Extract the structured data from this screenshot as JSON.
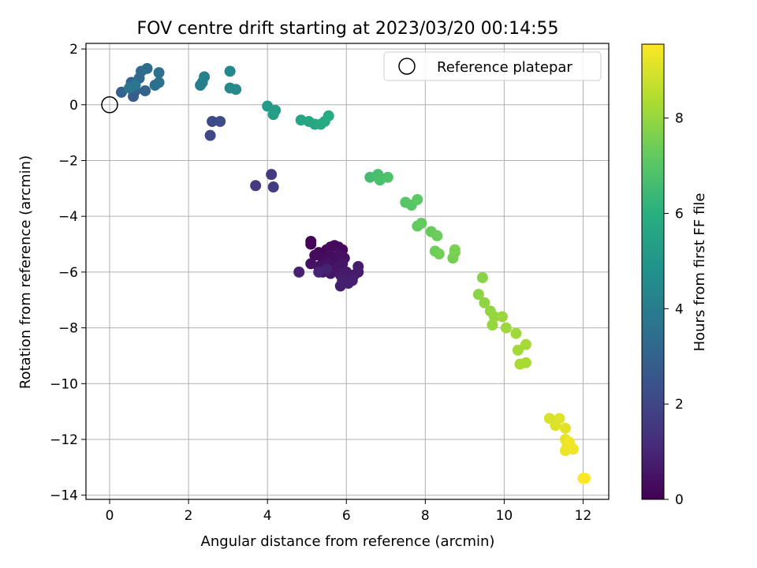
{
  "chart_data": {
    "type": "scatter",
    "title": "FOV centre drift starting at 2023/03/20 00:14:55",
    "xlabel": "Angular distance from reference (arcmin)",
    "ylabel": "Rotation from reference (arcmin)",
    "xlim": [
      -0.6,
      12.65
    ],
    "ylim": [
      -14.15,
      2.2
    ],
    "xticks": [
      0,
      2,
      4,
      6,
      8,
      10,
      12
    ],
    "yticks": [
      2,
      0,
      -2,
      -4,
      -6,
      -8,
      -10,
      -12,
      -14
    ],
    "grid": true,
    "legend": {
      "position": "top-right",
      "entries": [
        "Reference platepar"
      ]
    },
    "reference_point": {
      "x": 0,
      "y": 0
    },
    "colorbar": {
      "label": "Hours from first FF file",
      "range": [
        0,
        9.55
      ],
      "ticks": [
        0,
        2,
        4,
        6,
        8
      ],
      "colormap": "viridis"
    },
    "points": [
      {
        "x": 5.1,
        "y": -4.9,
        "t": 0.1
      },
      {
        "x": 5.1,
        "y": -5.0,
        "t": 0.1
      },
      {
        "x": 5.3,
        "y": -5.3,
        "t": 0.15
      },
      {
        "x": 5.5,
        "y": -5.2,
        "t": 0.15
      },
      {
        "x": 5.6,
        "y": -5.1,
        "t": 0.2
      },
      {
        "x": 5.7,
        "y": -5.05,
        "t": 0.2
      },
      {
        "x": 5.8,
        "y": -5.1,
        "t": 0.25
      },
      {
        "x": 5.9,
        "y": -5.2,
        "t": 0.25
      },
      {
        "x": 5.2,
        "y": -5.4,
        "t": 0.3
      },
      {
        "x": 5.4,
        "y": -5.5,
        "t": 0.3
      },
      {
        "x": 5.6,
        "y": -5.4,
        "t": 0.35
      },
      {
        "x": 5.7,
        "y": -5.5,
        "t": 0.35
      },
      {
        "x": 5.8,
        "y": -5.4,
        "t": 0.4
      },
      {
        "x": 5.95,
        "y": -5.5,
        "t": 0.4
      },
      {
        "x": 5.1,
        "y": -5.7,
        "t": 0.45
      },
      {
        "x": 5.3,
        "y": -5.8,
        "t": 0.45
      },
      {
        "x": 5.5,
        "y": -5.7,
        "t": 0.5
      },
      {
        "x": 5.65,
        "y": -5.75,
        "t": 0.5
      },
      {
        "x": 5.75,
        "y": -5.85,
        "t": 0.55
      },
      {
        "x": 5.9,
        "y": -5.7,
        "t": 0.55
      },
      {
        "x": 5.4,
        "y": -6.0,
        "t": 0.6
      },
      {
        "x": 5.6,
        "y": -6.05,
        "t": 0.6
      },
      {
        "x": 5.85,
        "y": -6.1,
        "t": 0.65
      },
      {
        "x": 6.0,
        "y": -6.0,
        "t": 0.65
      },
      {
        "x": 6.1,
        "y": -6.2,
        "t": 0.7
      },
      {
        "x": 6.2,
        "y": -6.1,
        "t": 0.7
      },
      {
        "x": 6.3,
        "y": -6.0,
        "t": 0.75
      },
      {
        "x": 6.3,
        "y": -5.8,
        "t": 0.75
      },
      {
        "x": 5.9,
        "y": -6.3,
        "t": 0.8
      },
      {
        "x": 5.85,
        "y": -6.5,
        "t": 0.8
      },
      {
        "x": 6.05,
        "y": -6.4,
        "t": 0.85
      },
      {
        "x": 6.15,
        "y": -6.3,
        "t": 0.85
      },
      {
        "x": 4.8,
        "y": -6.0,
        "t": 0.9
      },
      {
        "x": 5.5,
        "y": -5.9,
        "t": 0.9
      },
      {
        "x": 5.3,
        "y": -6.0,
        "t": 0.95
      },
      {
        "x": 3.7,
        "y": -2.9,
        "t": 1.6
      },
      {
        "x": 4.1,
        "y": -2.5,
        "t": 1.6
      },
      {
        "x": 4.15,
        "y": -2.95,
        "t": 1.65
      },
      {
        "x": 2.55,
        "y": -1.1,
        "t": 2.1
      },
      {
        "x": 2.6,
        "y": -0.6,
        "t": 2.1
      },
      {
        "x": 2.8,
        "y": -0.6,
        "t": 2.15
      },
      {
        "x": 0.6,
        "y": 0.3,
        "t": 2.8
      },
      {
        "x": 0.65,
        "y": 0.5,
        "t": 2.9
      },
      {
        "x": 0.9,
        "y": 0.5,
        "t": 3.0
      },
      {
        "x": 0.3,
        "y": 0.45,
        "t": 3.0
      },
      {
        "x": 0.55,
        "y": 0.8,
        "t": 3.1
      },
      {
        "x": 0.75,
        "y": 0.95,
        "t": 3.2
      },
      {
        "x": 0.8,
        "y": 1.2,
        "t": 3.3
      },
      {
        "x": 0.95,
        "y": 1.3,
        "t": 3.4
      },
      {
        "x": 1.15,
        "y": 0.7,
        "t": 3.5
      },
      {
        "x": 1.25,
        "y": 0.8,
        "t": 3.6
      },
      {
        "x": 1.25,
        "y": 1.15,
        "t": 3.6
      },
      {
        "x": 0.5,
        "y": 0.6,
        "t": 3.7
      },
      {
        "x": 0.65,
        "y": 0.7,
        "t": 3.7
      },
      {
        "x": 2.3,
        "y": 0.7,
        "t": 4.1
      },
      {
        "x": 2.35,
        "y": 0.8,
        "t": 4.1
      },
      {
        "x": 2.4,
        "y": 1.0,
        "t": 4.15
      },
      {
        "x": 3.05,
        "y": 1.2,
        "t": 4.4
      },
      {
        "x": 3.05,
        "y": 0.6,
        "t": 4.5
      },
      {
        "x": 3.2,
        "y": 0.55,
        "t": 4.5
      },
      {
        "x": 4.0,
        "y": -0.05,
        "t": 5.2
      },
      {
        "x": 4.2,
        "y": -0.2,
        "t": 5.25
      },
      {
        "x": 4.15,
        "y": -0.35,
        "t": 5.3
      },
      {
        "x": 4.85,
        "y": -0.55,
        "t": 5.6
      },
      {
        "x": 5.05,
        "y": -0.6,
        "t": 5.65
      },
      {
        "x": 5.2,
        "y": -0.7,
        "t": 5.7
      },
      {
        "x": 5.35,
        "y": -0.7,
        "t": 5.75
      },
      {
        "x": 5.45,
        "y": -0.6,
        "t": 5.8
      },
      {
        "x": 5.55,
        "y": -0.4,
        "t": 5.85
      },
      {
        "x": 6.6,
        "y": -2.6,
        "t": 6.6
      },
      {
        "x": 6.8,
        "y": -2.5,
        "t": 6.7
      },
      {
        "x": 6.85,
        "y": -2.7,
        "t": 6.75
      },
      {
        "x": 7.05,
        "y": -2.6,
        "t": 6.8
      },
      {
        "x": 7.5,
        "y": -3.5,
        "t": 7.0
      },
      {
        "x": 7.65,
        "y": -3.6,
        "t": 7.05
      },
      {
        "x": 7.8,
        "y": -3.4,
        "t": 7.1
      },
      {
        "x": 7.8,
        "y": -4.35,
        "t": 7.2
      },
      {
        "x": 7.9,
        "y": -4.25,
        "t": 7.25
      },
      {
        "x": 8.15,
        "y": -4.55,
        "t": 7.3
      },
      {
        "x": 8.3,
        "y": -4.7,
        "t": 7.35
      },
      {
        "x": 8.25,
        "y": -5.25,
        "t": 7.4
      },
      {
        "x": 8.35,
        "y": -5.35,
        "t": 7.45
      },
      {
        "x": 8.7,
        "y": -5.5,
        "t": 7.5
      },
      {
        "x": 8.75,
        "y": -5.3,
        "t": 7.55
      },
      {
        "x": 8.75,
        "y": -5.2,
        "t": 7.55
      },
      {
        "x": 9.45,
        "y": -6.2,
        "t": 7.8
      },
      {
        "x": 9.35,
        "y": -6.8,
        "t": 7.85
      },
      {
        "x": 9.5,
        "y": -7.1,
        "t": 7.9
      },
      {
        "x": 9.65,
        "y": -7.4,
        "t": 7.95
      },
      {
        "x": 9.75,
        "y": -7.6,
        "t": 8.0
      },
      {
        "x": 9.7,
        "y": -7.9,
        "t": 8.0
      },
      {
        "x": 9.95,
        "y": -7.6,
        "t": 8.05
      },
      {
        "x": 10.05,
        "y": -8.0,
        "t": 8.1
      },
      {
        "x": 10.3,
        "y": -8.2,
        "t": 8.15
      },
      {
        "x": 10.35,
        "y": -8.8,
        "t": 8.2
      },
      {
        "x": 10.55,
        "y": -8.6,
        "t": 8.25
      },
      {
        "x": 10.4,
        "y": -9.3,
        "t": 8.3
      },
      {
        "x": 10.55,
        "y": -9.25,
        "t": 8.3
      },
      {
        "x": 11.15,
        "y": -11.25,
        "t": 9.0
      },
      {
        "x": 11.3,
        "y": -11.5,
        "t": 9.05
      },
      {
        "x": 11.4,
        "y": -11.25,
        "t": 9.1
      },
      {
        "x": 11.55,
        "y": -11.6,
        "t": 9.15
      },
      {
        "x": 11.55,
        "y": -12.0,
        "t": 9.2
      },
      {
        "x": 11.6,
        "y": -12.2,
        "t": 9.25
      },
      {
        "x": 11.7,
        "y": -12.3,
        "t": 9.3
      },
      {
        "x": 11.55,
        "y": -12.4,
        "t": 9.3
      },
      {
        "x": 11.75,
        "y": -12.35,
        "t": 9.35
      },
      {
        "x": 11.65,
        "y": -12.1,
        "t": 9.35
      },
      {
        "x": 12.0,
        "y": -13.4,
        "t": 9.5
      },
      {
        "x": 12.05,
        "y": -13.4,
        "t": 9.5
      }
    ]
  }
}
